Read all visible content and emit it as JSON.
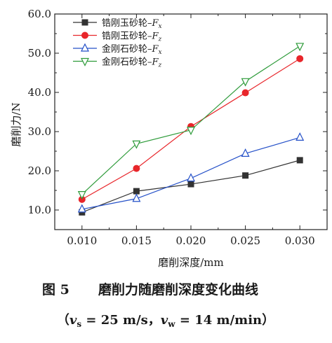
{
  "chart_data": {
    "type": "line",
    "xlabel": "磨削深度/mm",
    "ylabel": "磨削力/N",
    "xlim": [
      0.0075,
      0.0325
    ],
    "ylim": [
      5.0,
      60.0
    ],
    "x": [
      0.01,
      0.015,
      0.02,
      0.025,
      0.03
    ],
    "x_tick_labels": [
      "0.010",
      "0.015",
      "0.020",
      "0.025",
      "0.030"
    ],
    "y_ticks": [
      10,
      20,
      30,
      40,
      50,
      60
    ],
    "y_tick_labels": [
      "10.0",
      "20.0",
      "30.0",
      "40.0",
      "50.0",
      "60.0"
    ],
    "legend_position": "top-left",
    "series": [
      {
        "name": "锆刚玉砂轮–Fx",
        "name_main": "锆刚玉砂轮–",
        "name_var": "F",
        "name_sub": "x",
        "color": "#333333",
        "marker": "square",
        "values": [
          9.4,
          14.8,
          16.6,
          18.8,
          22.7
        ]
      },
      {
        "name": "锆刚玉砂轮–Fz",
        "name_main": "锆刚玉砂轮–",
        "name_var": "F",
        "name_sub": "z",
        "color": "#e8262b",
        "marker": "circle",
        "values": [
          12.7,
          20.6,
          31.3,
          39.9,
          48.6
        ]
      },
      {
        "name": "金刚石砂轮–Fx",
        "name_main": "金刚石砂轮–",
        "name_var": "F",
        "name_sub": "x",
        "color": "#2450c8",
        "marker": "triangle-up",
        "values": [
          10.2,
          12.9,
          18.1,
          24.4,
          28.5
        ]
      },
      {
        "name": "金刚石砂轮–Fz",
        "name_main": "金刚石砂轮–",
        "name_var": "F",
        "name_sub": "z",
        "color": "#2e9b3a",
        "marker": "triangle-down",
        "values": [
          14.0,
          26.9,
          30.4,
          42.8,
          51.8
        ]
      }
    ]
  },
  "caption": {
    "figure_label": "图 5",
    "title": "磨削力随磨削深度变化曲线",
    "conditions": "（vs = 25 m/s，vw = 14 m/min）",
    "open_paren": "（",
    "vs_var": "v",
    "vs_sub": "s",
    "vs_value": " = 25 m/s，",
    "vw_var": "v",
    "vw_sub": "w",
    "vw_value": " = 14 m/min",
    "close_paren": "）"
  }
}
